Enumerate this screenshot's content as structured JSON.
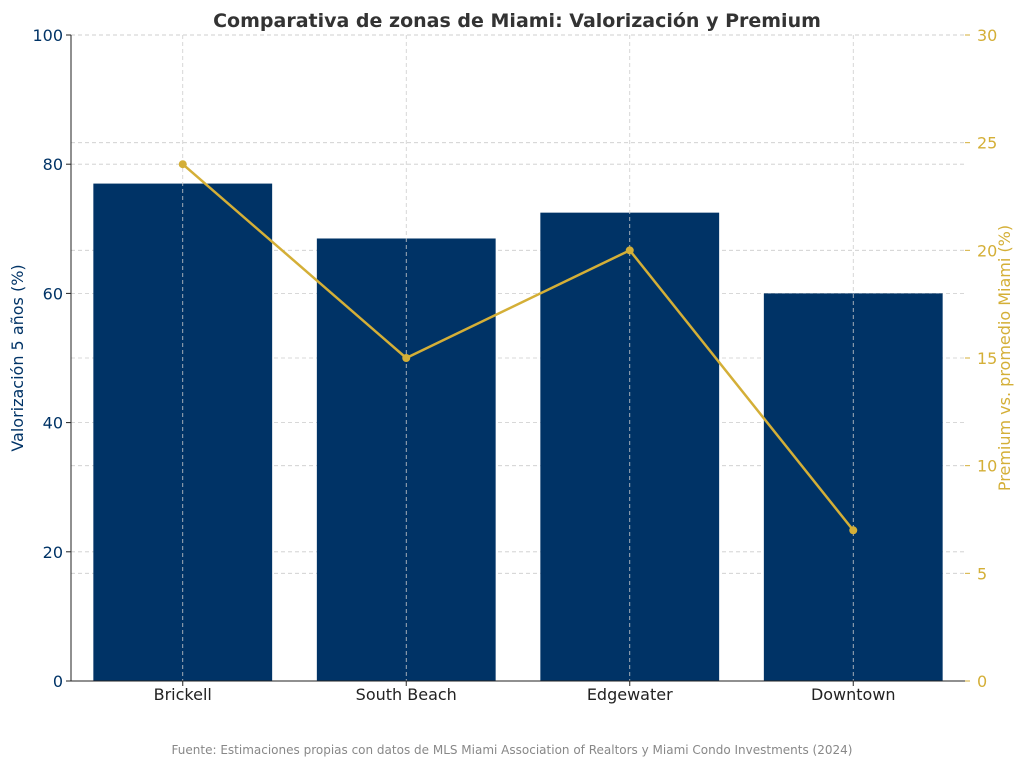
{
  "chart_data": {
    "type": "bar",
    "title": "Comparativa de zonas de Miami: Valorización y Premium",
    "categories": [
      "Brickell",
      "South Beach",
      "Edgewater",
      "Downtown"
    ],
    "series": [
      {
        "name": "",
        "chart": "bar",
        "axis": "left",
        "values": [
          77,
          68.5,
          72.5,
          60
        ],
        "color": "#003366"
      },
      {
        "name": "",
        "chart": "line",
        "axis": "right",
        "values": [
          24,
          15,
          20,
          7
        ],
        "color": "#D4AF37"
      }
    ],
    "xlabel": "",
    "ylabel": "Valorización 5 años (%)",
    "ylabel_right": "Premium vs. promedio Miami (%)",
    "ylim": [
      0,
      100
    ],
    "ylim_right": [
      0,
      30
    ],
    "yticks": [
      0,
      20,
      40,
      60,
      80,
      100
    ],
    "yticks_right": [
      0,
      5,
      10,
      15,
      20,
      25,
      30
    ],
    "grid": true,
    "source": "Fuente: Estimaciones propias con datos de MLS Miami Association of Realtors y Miami Condo Investments (2024)"
  }
}
